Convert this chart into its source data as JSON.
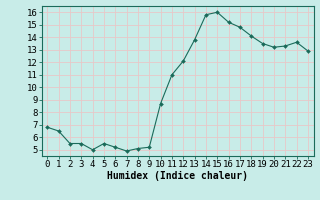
{
  "x": [
    0,
    1,
    2,
    3,
    4,
    5,
    6,
    7,
    8,
    9,
    10,
    11,
    12,
    13,
    14,
    15,
    16,
    17,
    18,
    19,
    20,
    21,
    22,
    23
  ],
  "y": [
    6.8,
    6.5,
    5.5,
    5.5,
    5.0,
    5.5,
    5.2,
    4.9,
    5.1,
    5.2,
    8.7,
    11.0,
    12.1,
    13.8,
    15.8,
    16.0,
    15.2,
    14.8,
    14.1,
    13.5,
    13.2,
    13.3,
    13.6,
    12.9
  ],
  "xlabel": "Humidex (Indice chaleur)",
  "ylim": [
    4.5,
    16.5
  ],
  "xlim": [
    -0.5,
    23.5
  ],
  "yticks": [
    5,
    6,
    7,
    8,
    9,
    10,
    11,
    12,
    13,
    14,
    15,
    16
  ],
  "xticks": [
    0,
    1,
    2,
    3,
    4,
    5,
    6,
    7,
    8,
    9,
    10,
    11,
    12,
    13,
    14,
    15,
    16,
    17,
    18,
    19,
    20,
    21,
    22,
    23
  ],
  "line_color": "#1a6b5a",
  "marker": "D",
  "marker_size": 2.0,
  "bg_color": "#c8ece8",
  "grid_color": "#e8c8c8",
  "label_fontsize": 7,
  "tick_fontsize": 6.5
}
